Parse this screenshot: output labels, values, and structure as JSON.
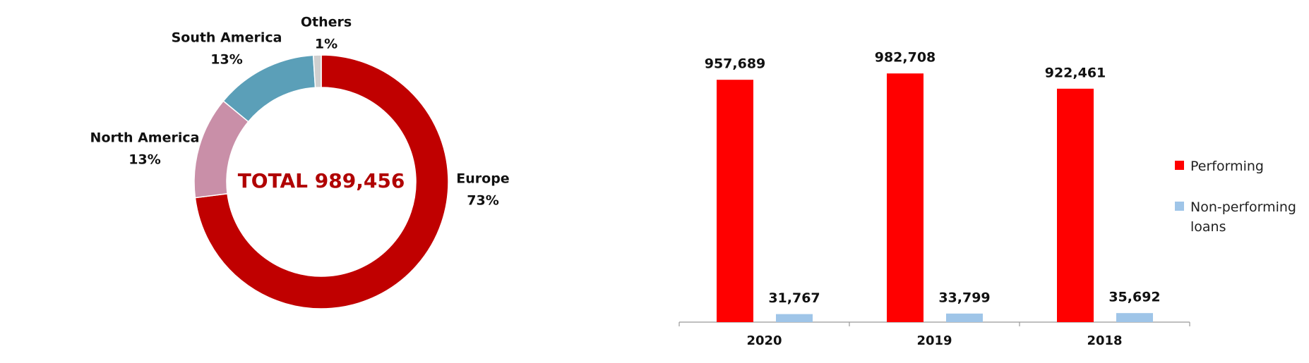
{
  "chart_data": [
    {
      "type": "pie",
      "donut": true,
      "center_label": "TOTAL 989,456",
      "categories": [
        "Europe",
        "North America",
        "South America",
        "Others"
      ],
      "values": [
        73,
        13,
        13,
        1
      ],
      "value_labels": [
        "73%",
        "13%",
        "13%",
        "1%"
      ],
      "colors": [
        "#c00000",
        "#c98fa8",
        "#5b9fb8",
        "#cfcfcf"
      ]
    },
    {
      "type": "bar",
      "categories": [
        "2020",
        "2019",
        "2018"
      ],
      "series": [
        {
          "name": "Performing",
          "color": "#ff0000",
          "values": [
            957689,
            982708,
            922461
          ],
          "value_labels": [
            "957,689",
            "982,708",
            "922,461"
          ]
        },
        {
          "name": "Non-performing loans",
          "color": "#9fc5e8",
          "values": [
            31767,
            33799,
            35692
          ],
          "value_labels": [
            "31,767",
            "33,799",
            "35,692"
          ]
        }
      ],
      "ylim": [
        0,
        1000000
      ],
      "legend": "right"
    }
  ]
}
